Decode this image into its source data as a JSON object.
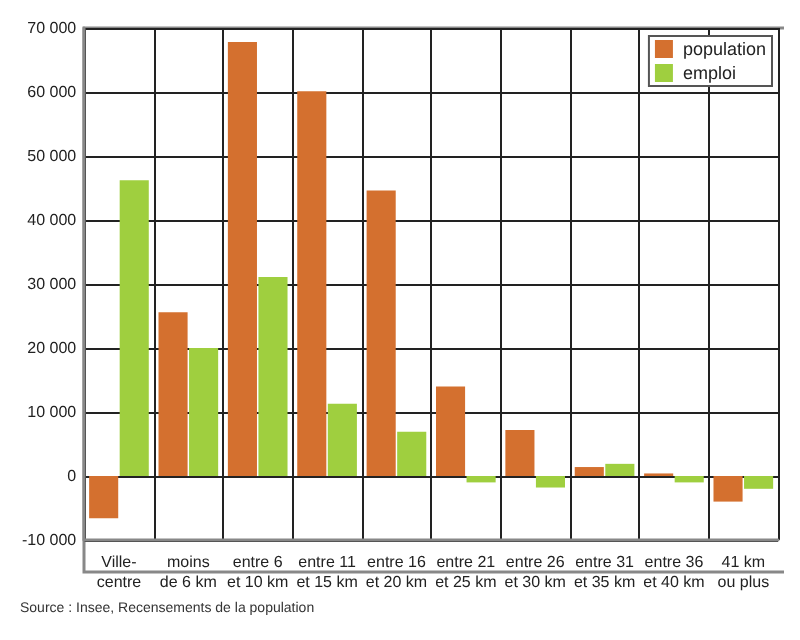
{
  "chart_data": {
    "type": "bar",
    "categories": [
      "Ville-\ncentre",
      "moins\nde 6 km",
      "entre 6\net 10 km",
      "entre 11\net 15 km",
      "entre 16\net 20 km",
      "entre 21\net 25 km",
      "entre 26\net 30 km",
      "entre 31\net 35 km",
      "entre 36\net 40 km",
      "41 km\nou plus"
    ],
    "series": [
      {
        "name": "population",
        "color": "#d4702f",
        "values": [
          -6600,
          25600,
          67800,
          60100,
          44600,
          14000,
          7200,
          1400,
          400,
          -4000
        ]
      },
      {
        "name": "emploi",
        "color": "#9fcf3f",
        "values": [
          46200,
          20000,
          31100,
          11300,
          6900,
          -1000,
          -1800,
          1900,
          -1000,
          -2000
        ]
      }
    ],
    "ylim": [
      -10000,
      70000
    ],
    "yticks": [
      {
        "value": -10000,
        "label": "-10 000"
      },
      0,
      {
        "value": 10000,
        "label": "10 000"
      },
      {
        "value": 20000,
        "label": "20 000"
      },
      {
        "value": 30000,
        "label": "30 000"
      },
      {
        "value": 40000,
        "label": "40 000"
      },
      {
        "value": 50000,
        "label": "50 000"
      },
      {
        "value": 60000,
        "label": "60 000"
      },
      {
        "value": 70000,
        "label": "70 000"
      }
    ],
    "grid": true,
    "legend": "top right",
    "annotations": [
      "Source : Insee, Recensements de la population"
    ]
  }
}
